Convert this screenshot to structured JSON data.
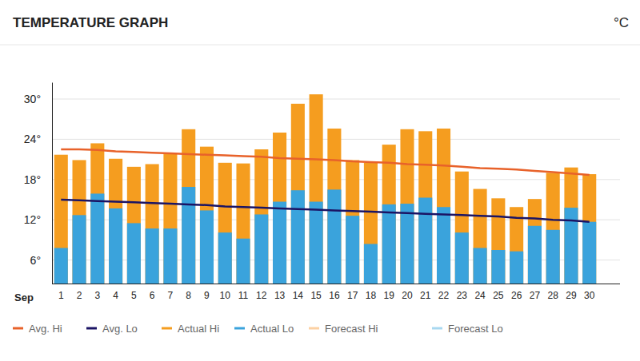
{
  "chart_data": {
    "type": "bar",
    "title": "TEMPERATURE GRAPH",
    "y_label": "°C",
    "x_label": "Sep",
    "categories": [
      "1",
      "2",
      "3",
      "4",
      "5",
      "6",
      "7",
      "8",
      "9",
      "10",
      "11",
      "12",
      "13",
      "14",
      "15",
      "16",
      "17",
      "18",
      "19",
      "20",
      "21",
      "22",
      "23",
      "24",
      "25",
      "26",
      "27",
      "28",
      "29",
      "30"
    ],
    "ylim": [
      2.5,
      32.5
    ],
    "yticks": [
      {
        "value": 6,
        "label": "6°"
      },
      {
        "value": 12,
        "label": "12°"
      },
      {
        "value": 18,
        "label": "18°"
      },
      {
        "value": 24,
        "label": "24°"
      },
      {
        "value": 30,
        "label": "30°"
      }
    ],
    "grid": true,
    "legend": "bottom",
    "series": [
      {
        "name": "Avg. Hi",
        "type": "line",
        "color": "#e8622a",
        "values": [
          22.5,
          22.5,
          22.4,
          22.2,
          22.1,
          22.0,
          21.9,
          21.8,
          21.7,
          21.6,
          21.5,
          21.4,
          21.2,
          21.1,
          21.0,
          20.9,
          20.7,
          20.6,
          20.5,
          20.3,
          20.2,
          20.1,
          19.9,
          19.7,
          19.6,
          19.5,
          19.3,
          19.1,
          18.9,
          18.7
        ]
      },
      {
        "name": "Avg. Lo",
        "type": "line",
        "color": "#1b1464",
        "values": [
          15.0,
          14.9,
          14.8,
          14.7,
          14.6,
          14.5,
          14.4,
          14.3,
          14.2,
          14.0,
          13.9,
          13.8,
          13.7,
          13.6,
          13.5,
          13.4,
          13.3,
          13.2,
          13.1,
          13.0,
          12.9,
          12.8,
          12.7,
          12.6,
          12.5,
          12.3,
          12.2,
          12.0,
          11.9,
          11.7
        ]
      },
      {
        "name": "Actual Hi",
        "type": "bar",
        "color": "#f59d1f",
        "values": [
          21.7,
          20.9,
          23.4,
          21.1,
          19.9,
          20.3,
          21.9,
          25.5,
          22.9,
          20.5,
          20.4,
          22.5,
          25.0,
          29.3,
          30.7,
          25.6,
          20.9,
          20.5,
          23.2,
          25.5,
          25.2,
          25.6,
          19.2,
          16.6,
          15.2,
          13.9,
          15.1,
          19.0,
          19.8,
          18.8
        ]
      },
      {
        "name": "Actual Lo",
        "type": "bar",
        "color": "#3aa3dc",
        "values": [
          7.8,
          12.7,
          15.9,
          13.7,
          11.5,
          10.7,
          10.7,
          16.9,
          13.4,
          10.1,
          9.2,
          12.8,
          14.7,
          16.4,
          14.7,
          16.5,
          12.6,
          8.4,
          14.3,
          14.4,
          15.3,
          13.9,
          10.1,
          7.8,
          7.5,
          7.3,
          11.1,
          10.5,
          13.8,
          11.7
        ]
      },
      {
        "name": "Forecast Hi",
        "type": "bar",
        "color": "#fcd1a3",
        "values": [
          null,
          null,
          null,
          null,
          null,
          null,
          null,
          null,
          null,
          null,
          null,
          null,
          null,
          null,
          null,
          null,
          null,
          null,
          null,
          null,
          null,
          null,
          null,
          null,
          null,
          null,
          null,
          null,
          null,
          null
        ]
      },
      {
        "name": "Forecast Lo",
        "type": "bar",
        "color": "#a8d8f0",
        "values": [
          null,
          null,
          null,
          null,
          null,
          null,
          null,
          null,
          null,
          null,
          null,
          null,
          null,
          null,
          null,
          null,
          null,
          null,
          null,
          null,
          null,
          null,
          null,
          null,
          null,
          null,
          null,
          null,
          null,
          null
        ]
      }
    ]
  }
}
